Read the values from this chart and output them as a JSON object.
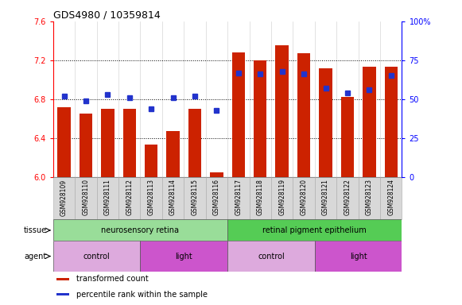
{
  "title": "GDS4980 / 10359814",
  "samples": [
    "GSM928109",
    "GSM928110",
    "GSM928111",
    "GSM928112",
    "GSM928113",
    "GSM928114",
    "GSM928115",
    "GSM928116",
    "GSM928117",
    "GSM928118",
    "GSM928119",
    "GSM928120",
    "GSM928121",
    "GSM928122",
    "GSM928123",
    "GSM928124"
  ],
  "transformed_count": [
    6.72,
    6.65,
    6.7,
    6.7,
    6.33,
    6.47,
    6.7,
    6.05,
    7.28,
    7.2,
    7.35,
    7.27,
    7.12,
    6.82,
    7.13,
    7.13
  ],
  "percentile_rank": [
    52,
    49,
    53,
    51,
    44,
    51,
    52,
    43,
    67,
    66,
    68,
    66,
    57,
    54,
    56,
    65
  ],
  "ylim_left": [
    6.0,
    7.6
  ],
  "ylim_right": [
    0,
    100
  ],
  "yticks_left": [
    6.0,
    6.4,
    6.8,
    7.2,
    7.6
  ],
  "yticks_right": [
    0,
    25,
    50,
    75,
    100
  ],
  "bar_color": "#cc2200",
  "dot_color": "#2233cc",
  "tissue_groups": [
    {
      "label": "neurosensory retina",
      "start": 0,
      "end": 8,
      "color": "#99dd99"
    },
    {
      "label": "retinal pigment epithelium",
      "start": 8,
      "end": 16,
      "color": "#55cc55"
    }
  ],
  "agent_groups": [
    {
      "label": "control",
      "start": 0,
      "end": 4,
      "color": "#ddaadd"
    },
    {
      "label": "light",
      "start": 4,
      "end": 8,
      "color": "#cc55cc"
    },
    {
      "label": "control",
      "start": 8,
      "end": 12,
      "color": "#ddaadd"
    },
    {
      "label": "light",
      "start": 12,
      "end": 16,
      "color": "#cc55cc"
    }
  ],
  "legend_items": [
    {
      "label": "transformed count",
      "color": "#cc2200"
    },
    {
      "label": "percentile rank within the sample",
      "color": "#2233cc"
    }
  ],
  "figsize": [
    5.81,
    3.84
  ],
  "dpi": 100
}
